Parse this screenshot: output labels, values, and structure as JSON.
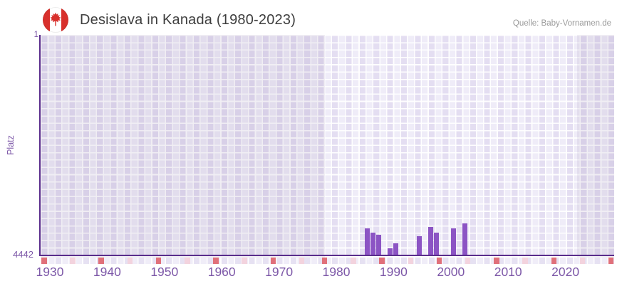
{
  "header": {
    "flag": "canada-flag-icon",
    "title": "Desislava in Kanada (1980-2023)",
    "source": "Quelle: Baby-Vornamen.de"
  },
  "chart_data": {
    "type": "bar",
    "title": "Desislava in Kanada (1980-2023)",
    "ylabel": "Platz",
    "xlabel": "",
    "y_axis": {
      "top_label": "1",
      "bottom_label": "4442",
      "min": 1,
      "max": 4442,
      "inverted": true,
      "note": "rank 1 at top, bars grow upward from bottom (worse rank = shorter bar)"
    },
    "x_axis": {
      "range": [
        1928,
        2029
      ],
      "ticks": [
        "1930",
        "1940",
        "1950",
        "1960",
        "1970",
        "1980",
        "1990",
        "2000",
        "2010",
        "2020"
      ]
    },
    "data_period": {
      "start": 1980,
      "end": 2023
    },
    "highlight_band": {
      "start": 1978,
      "end": 2022,
      "note": "lighter background inside data period, darker outside"
    },
    "bars": [
      {
        "year": 1985,
        "rank": 3910
      },
      {
        "year": 1986,
        "rank": 3995
      },
      {
        "year": 1987,
        "rank": 4040
      },
      {
        "year": 1989,
        "rank": 4310
      },
      {
        "year": 1990,
        "rank": 4210
      },
      {
        "year": 1994,
        "rank": 4070
      },
      {
        "year": 1996,
        "rank": 3880
      },
      {
        "year": 1997,
        "rank": 3995
      },
      {
        "year": 2000,
        "rank": 3910
      },
      {
        "year": 2002,
        "rank": 3810
      }
    ],
    "axis_marker_tiles": {
      "red_years": [
        1929,
        1939,
        1949,
        1959,
        1969,
        1978,
        1988,
        1998,
        2008,
        2018,
        2028
      ],
      "pink_years": [
        1934,
        1944,
        1954,
        1964,
        1974,
        1983,
        1993,
        2003,
        2013,
        2023
      ]
    },
    "legend": [],
    "grid": true,
    "colors": {
      "bar": "#8c54c4",
      "axis_line": "#5a2d8c",
      "tick_label": "#7d58a8",
      "red_tile": "#e0707a",
      "pink_tile": "#f3d3de",
      "plot_bg_light": "#efecf8",
      "plot_bg_dark": "#e2ddee",
      "flag_red": "#d8302c",
      "title_text": "#3e3e3e",
      "source_text": "#9b9b9b"
    }
  }
}
